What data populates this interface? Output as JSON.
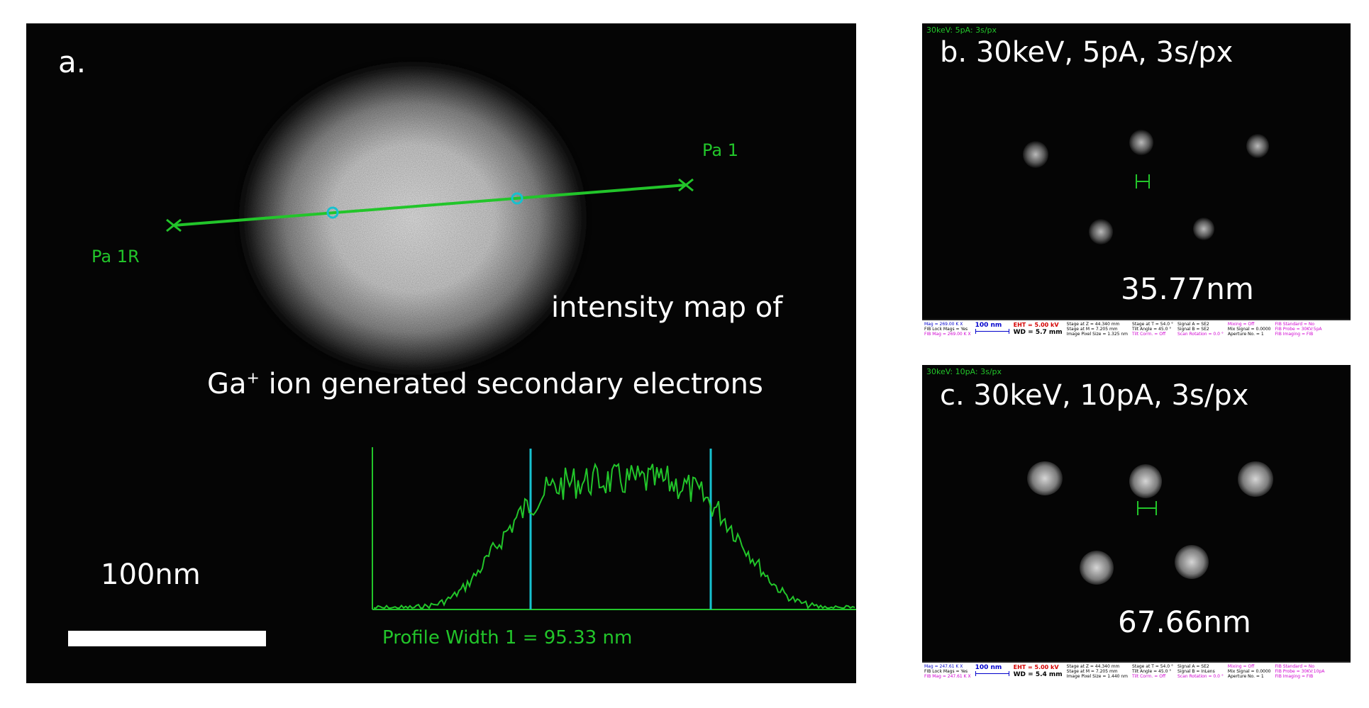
{
  "panel_a": {
    "label": "a.",
    "marker_right": "Pa 1",
    "marker_left": "Pa 1R",
    "caption_line1": "intensity map of",
    "caption_ga": "Ga",
    "caption_sup": "+",
    "caption_rest": " ion generated secondary electrons",
    "scale_label": "100nm",
    "profile_text": "Profile Width 1 = 95.33 nm"
  },
  "panel_b": {
    "header": "30keV: 5pA: 3s/px",
    "label": "b. 30keV, 5pA, 3s/px",
    "measurement": "35.77nm",
    "info": {
      "mag": "Mag = 269.00 K X",
      "fib_lock": "FIB Lock Mags = Yes",
      "fib_mag": "FIB Mag = 269.00 K X",
      "scale": "100 nm",
      "eht": "EHT = 5.00 kV",
      "wd": "WD = 5.7 mm",
      "stage_z": "Stage at Z = 44.340 mm",
      "stage_m": "Stage at M = 7.205 mm",
      "pixel": "Image Pixel Size = 1.325 nm",
      "stage_t": "Stage at T = 54.0 °",
      "tilt": "Tilt Angle = 45.0 °",
      "tilt_corr": "Tilt Corrn. = Off",
      "signal_a": "Signal A = SE2",
      "signal_b": "Signal B = SE2",
      "scan_rot": "Scan Rotation = 0.0 °",
      "mixing": "Mixing = Off",
      "mix_signal": "Mix Signal = 0.0000",
      "aperture": "Aperture No. = 1",
      "fib_standard": "FIB Standard = No",
      "fib_probe": "FIB Probe = 30KV:5pA",
      "fib_imaging": "FIB Imaging = FIB"
    }
  },
  "panel_c": {
    "header": "30keV: 10pA: 3s/px",
    "label": "c. 30keV, 10pA, 3s/px",
    "measurement": "67.66nm",
    "info": {
      "mag": "Mag = 247.61 K X",
      "fib_lock": "FIB Lock Mags = Yes",
      "fib_mag": "FIB Mag = 247.61 K X",
      "scale": "100 nm",
      "eht": "EHT = 5.00 kV",
      "wd": "WD = 5.4 mm",
      "stage_z": "Stage at Z = 44.340 mm",
      "stage_m": "Stage at M = 7.205 mm",
      "pixel": "Image Pixel Size = 1.440 nm",
      "stage_t": "Stage at T = 54.0 °",
      "tilt": "Tilt Angle = 45.0 °",
      "tilt_corr": "Tilt Corrn. = Off",
      "signal_a": "Signal A = SE2",
      "signal_b": "Signal B = InLens",
      "scan_rot": "Scan Rotation = 0.0 °",
      "mixing": "Mixing = Off",
      "mix_signal": "Mix Signal = 0.0000",
      "aperture": "Aperture No. = 1",
      "fib_standard": "FIB Standard = No",
      "fib_probe": "FIB Probe = 30KV:10pA",
      "fib_imaging": "FIB Imaging = FIB"
    }
  },
  "colors": {
    "overlay_green": "#22c52a",
    "cursor_cyan": "#17c1cf",
    "background": "#050505",
    "label_white": "#ffffff"
  }
}
